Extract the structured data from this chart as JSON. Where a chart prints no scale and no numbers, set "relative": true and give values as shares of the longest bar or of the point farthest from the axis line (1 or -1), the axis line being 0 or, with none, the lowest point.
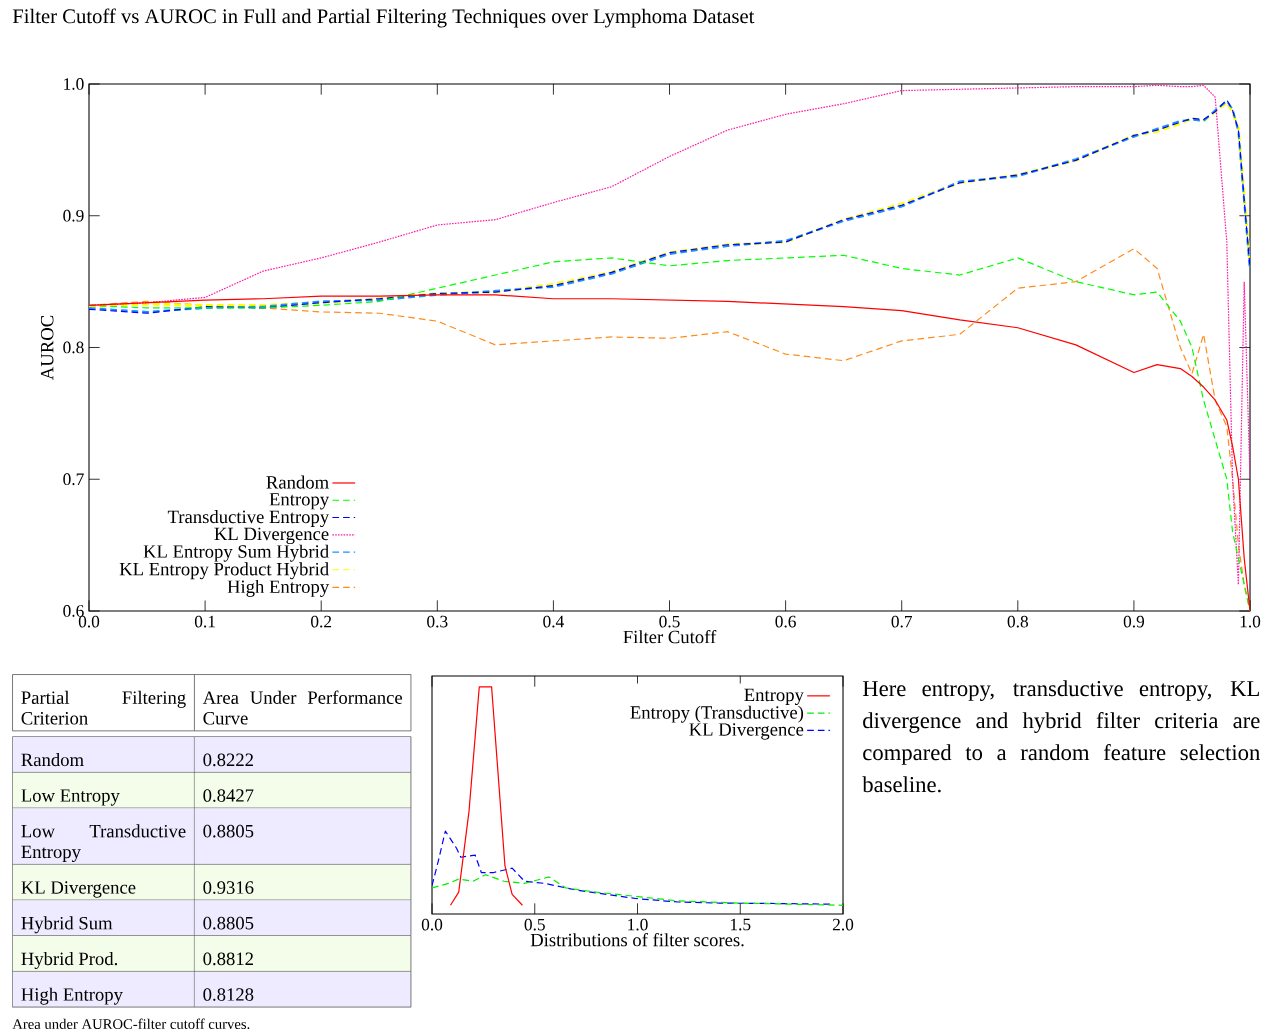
{
  "chart_data": [
    {
      "type": "line",
      "title": "Filter Cutoff vs AUROC in Full and Partial Filtering Techniques over Lymphoma Dataset",
      "xlabel": "Filter Cutoff",
      "ylabel": "AUROC",
      "x": [
        0,
        0.05,
        0.1,
        0.15,
        0.2,
        0.25,
        0.3,
        0.35,
        0.4,
        0.45,
        0.5,
        0.55,
        0.6,
        0.65,
        0.7,
        0.75,
        0.8,
        0.85,
        0.9,
        0.92,
        0.94,
        0.95,
        0.96,
        0.97,
        0.98,
        0.985,
        0.99,
        0.995,
        1.0
      ],
      "xlim": [
        0,
        1
      ],
      "ylim": [
        0.6,
        1.0
      ],
      "xticks": [
        {
          "value": 0,
          "label": "0.0"
        },
        0.1,
        0.2,
        0.3,
        0.4,
        0.5,
        0.6,
        0.7,
        0.8,
        0.9,
        {
          "value": 1,
          "label": "1.0"
        }
      ],
      "yticks": [
        0.6,
        0.7,
        0.8,
        0.9,
        {
          "value": 1,
          "label": "1.0"
        }
      ],
      "legend": "bottom left",
      "series": [
        {
          "name": "Random",
          "color": "#ff0000",
          "line_style": "solid",
          "values": [
            0.832,
            0.834,
            0.836,
            0.837,
            0.839,
            0.839,
            0.84,
            0.84,
            0.837,
            0.837,
            0.836,
            0.835,
            0.833,
            0.831,
            0.828,
            0.821,
            0.815,
            0.802,
            0.781,
            0.787,
            0.784,
            0.778,
            0.77,
            0.76,
            0.745,
            0.725,
            0.7,
            0.64,
            0.6
          ]
        },
        {
          "name": "Entropy",
          "color": "#00ff00",
          "line_style": "dashed",
          "values": [
            0.832,
            0.83,
            0.83,
            0.83,
            0.832,
            0.835,
            0.845,
            0.855,
            0.865,
            0.868,
            0.862,
            0.866,
            0.868,
            0.87,
            0.86,
            0.855,
            0.868,
            0.85,
            0.84,
            0.842,
            0.82,
            0.8,
            0.76,
            0.73,
            0.7,
            0.66,
            0.64,
            0.62,
            0.6
          ]
        },
        {
          "name": "Transductive Entropy",
          "color": "#0000ff",
          "line_style": "dashed",
          "values": [
            0.829,
            0.826,
            0.831,
            0.83,
            0.834,
            0.837,
            0.841,
            0.842,
            0.847,
            0.857,
            0.872,
            0.878,
            0.88,
            0.897,
            0.908,
            0.925,
            0.931,
            0.942,
            0.961,
            0.965,
            0.971,
            0.974,
            0.973,
            0.979,
            0.988,
            0.98,
            0.965,
            0.912,
            0.86
          ]
        },
        {
          "name": "KL Divergence",
          "color": "#ff1aa8",
          "line_style": "dotted",
          "values": [
            0.832,
            0.834,
            0.838,
            0.858,
            0.868,
            0.88,
            0.893,
            0.897,
            0.91,
            0.922,
            0.945,
            0.965,
            0.977,
            0.985,
            0.995,
            0.996,
            0.997,
            0.998,
            0.998,
            0.999,
            0.998,
            0.998,
            0.999,
            0.99,
            0.88,
            0.7,
            0.62,
            0.85,
            0.7
          ]
        },
        {
          "name": "KL Entropy Sum Hybrid",
          "color": "#1e90ff",
          "line_style": "dashed",
          "values": [
            0.83,
            0.827,
            0.83,
            0.831,
            0.835,
            0.836,
            0.84,
            0.843,
            0.846,
            0.856,
            0.871,
            0.877,
            0.881,
            0.896,
            0.907,
            0.926,
            0.93,
            0.943,
            0.96,
            0.966,
            0.972,
            0.973,
            0.972,
            0.98,
            0.987,
            0.981,
            0.964,
            0.91,
            0.858
          ]
        },
        {
          "name": "KL Entropy Product Hybrid",
          "color": "#ffff00",
          "line_style": "dashed",
          "values": [
            0.831,
            0.833,
            0.832,
            0.832,
            0.834,
            0.837,
            0.841,
            0.842,
            0.848,
            0.857,
            0.872,
            0.878,
            0.88,
            0.897,
            0.909,
            0.925,
            0.931,
            0.942,
            0.961,
            0.964,
            0.97,
            0.974,
            0.972,
            0.979,
            0.986,
            0.979,
            0.966,
            0.915,
            0.862
          ]
        },
        {
          "name": "High Entropy",
          "color": "#ff8c1a",
          "line_style": "dashed",
          "values": [
            0.832,
            0.835,
            0.832,
            0.83,
            0.827,
            0.826,
            0.82,
            0.802,
            0.805,
            0.808,
            0.807,
            0.812,
            0.795,
            0.79,
            0.805,
            0.81,
            0.845,
            0.85,
            0.875,
            0.86,
            0.8,
            0.78,
            0.81,
            0.76,
            0.74,
            0.7,
            0.65,
            0.62,
            0.6
          ]
        }
      ]
    },
    {
      "type": "other",
      "xlabel": "Partial Filtering Criterion",
      "ylabel": "Area Under Performance Curve",
      "categories": [
        "Random",
        "Low Entropy",
        "Low Transductive Entropy",
        "KL Divergence",
        "Hybrid Sum",
        "Hybrid Prod.",
        "High Entropy"
      ],
      "values": [
        0.8222,
        0.8427,
        0.8805,
        0.9316,
        0.8805,
        0.8812,
        0.8128
      ],
      "colors": [
        "#eeeaff",
        "#f3fde9",
        "#eeeaff",
        "#f3fde9",
        "#eeeaff",
        "#f3fde9",
        "#eeeaff"
      ],
      "data_labels": true,
      "annotations": [
        "Area under AUROC-filter cutoff curves."
      ]
    },
    {
      "type": "line",
      "xlabel": "Distributions of filter scores.",
      "relative": true,
      "xlim": [
        0,
        2
      ],
      "xticks": [
        {
          "value": 0,
          "label": "0.0"
        },
        0.5,
        {
          "value": 1,
          "label": "1.0"
        },
        1.5,
        {
          "value": 2,
          "label": "2.0"
        }
      ],
      "legend": "top right",
      "series": [
        {
          "name": "Entropy",
          "color": "#ff0000",
          "line_style": "solid",
          "x": [
            0.09,
            0.13,
            0.18,
            0.23,
            0.26,
            0.29,
            0.355,
            0.39,
            0.44
          ],
          "values": [
            0,
            0.06,
            0.43,
            1.0,
            1.0,
            1.0,
            0.18,
            0.05,
            0
          ]
        },
        {
          "name": "Entropy (Transductive)",
          "color": "#00ee00",
          "line_style": "dashed",
          "x": [
            0,
            0.08,
            0.13,
            0.2,
            0.26,
            0.35,
            0.45,
            0.57,
            0.65,
            0.8,
            1.0,
            1.2,
            1.5,
            2.0
          ],
          "values": [
            0.08,
            0.1,
            0.12,
            0.11,
            0.14,
            0.11,
            0.1,
            0.13,
            0.08,
            0.06,
            0.04,
            0.02,
            0.01,
            0.0
          ]
        },
        {
          "name": "KL Divergence",
          "color": "#0000ff",
          "line_style": "dashed",
          "x": [
            0,
            0.03,
            0.065,
            0.12,
            0.14,
            0.21,
            0.24,
            0.3,
            0.39,
            0.45,
            0.55,
            0.7,
            0.85,
            1.0,
            1.2,
            1.4,
            1.7,
            1.95
          ],
          "values": [
            0.09,
            0.2,
            0.34,
            0.26,
            0.22,
            0.23,
            0.15,
            0.15,
            0.17,
            0.11,
            0.1,
            0.07,
            0.05,
            0.03,
            0.015,
            0.01,
            0.008,
            0.005
          ]
        }
      ]
    },
    {
      "type": "other",
      "annotations": [
        "Here entropy, transductive entropy, KL divergence and hybrid filter criteria are compared to a random feature selection baseline."
      ]
    }
  ]
}
